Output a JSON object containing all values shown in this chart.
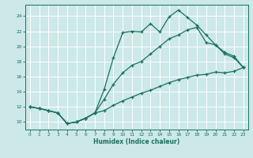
{
  "xlabel": "Humidex (Indice chaleur)",
  "ylabel": "",
  "xlim": [
    -0.5,
    23.5
  ],
  "ylim": [
    9.0,
    25.5
  ],
  "yticks": [
    10,
    12,
    14,
    16,
    18,
    20,
    22,
    24
  ],
  "xticks": [
    0,
    1,
    2,
    3,
    4,
    5,
    6,
    7,
    8,
    9,
    10,
    11,
    12,
    13,
    14,
    15,
    16,
    17,
    18,
    19,
    20,
    21,
    22,
    23
  ],
  "bg_color": "#cce8e8",
  "grid_color": "#ffffff",
  "line_color": "#1a7060",
  "line1_x": [
    0,
    1,
    2,
    3,
    4,
    5,
    6,
    7,
    8,
    9,
    10,
    11,
    12,
    13,
    14,
    15,
    16,
    17,
    18,
    19,
    20,
    21,
    22,
    23
  ],
  "line1_y": [
    12.0,
    11.8,
    11.5,
    11.2,
    9.8,
    10.0,
    10.5,
    11.2,
    14.3,
    18.5,
    21.8,
    22.0,
    21.9,
    23.0,
    21.9,
    23.9,
    24.8,
    23.8,
    22.8,
    21.5,
    20.2,
    19.0,
    18.5,
    17.2
  ],
  "line2_x": [
    0,
    1,
    2,
    3,
    4,
    5,
    6,
    7,
    8,
    9,
    10,
    11,
    12,
    13,
    14,
    15,
    16,
    17,
    18,
    19,
    20,
    21,
    22,
    23
  ],
  "line2_y": [
    12.0,
    11.8,
    11.5,
    11.2,
    9.8,
    10.0,
    10.5,
    11.2,
    13.0,
    15.0,
    16.5,
    17.5,
    18.0,
    19.0,
    20.0,
    21.0,
    21.5,
    22.2,
    22.5,
    20.5,
    20.2,
    19.2,
    18.7,
    17.2
  ],
  "line3_x": [
    0,
    1,
    2,
    3,
    4,
    5,
    6,
    7,
    8,
    9,
    10,
    11,
    12,
    13,
    14,
    15,
    16,
    17,
    18,
    19,
    20,
    21,
    22,
    23
  ],
  "line3_y": [
    12.0,
    11.8,
    11.5,
    11.2,
    9.8,
    10.0,
    10.5,
    11.2,
    11.5,
    12.2,
    12.8,
    13.3,
    13.8,
    14.2,
    14.7,
    15.2,
    15.6,
    15.9,
    16.2,
    16.3,
    16.6,
    16.5,
    16.7,
    17.2
  ]
}
